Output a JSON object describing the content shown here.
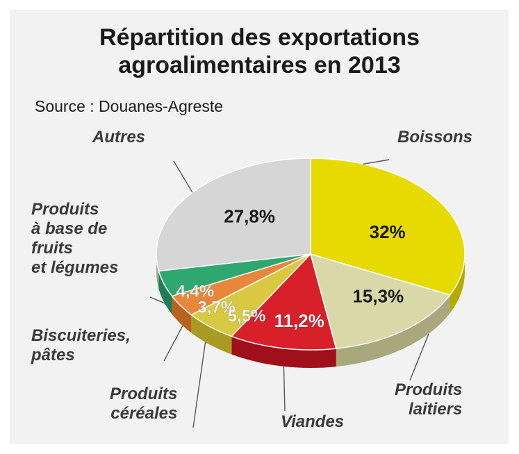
{
  "title_line1": "Répartition des exportations",
  "title_line2": "agroalimentaires en 2013",
  "source": "Source : Douanes-Agreste",
  "chart_data": {
    "type": "pie",
    "title": "Répartition des exportations agroalimentaires en 2013",
    "source": "Source : Douanes-Agreste",
    "unit": "%",
    "slices": [
      {
        "key": "boissons",
        "label": [
          "Boissons"
        ],
        "value": 32,
        "value_label": "32%",
        "color": "#e6da00",
        "side": "#b5ab00",
        "text_color": "#1a1a1a"
      },
      {
        "key": "laitiers",
        "label": [
          "Produits",
          "laitiers"
        ],
        "value": 15.3,
        "value_label": "15,3%",
        "color": "#d9d8a8",
        "side": "#a9a87c",
        "text_color": "#1a1a1a"
      },
      {
        "key": "viandes",
        "label": [
          "Viandes"
        ],
        "value": 11.2,
        "value_label": "11,2%",
        "color": "#d8202a",
        "side": "#a0101a",
        "text_color": "#ffffff"
      },
      {
        "key": "cereales",
        "label": [
          "Produits",
          "céréales"
        ],
        "value": 5.5,
        "value_label": "5,5%",
        "color": "#d9c841",
        "side": "#a99b22",
        "text_color": "#ffffff"
      },
      {
        "key": "biscuiteries",
        "label": [
          "Biscuiteries,",
          "pâtes"
        ],
        "value": 3.7,
        "value_label": "3,7%",
        "color": "#e8873a",
        "side": "#b8621f",
        "text_color": "#ffffff"
      },
      {
        "key": "fruits",
        "label": [
          "Produits",
          "à base de",
          "fruits",
          "et légumes"
        ],
        "value": 4.4,
        "value_label": "4,4%",
        "color": "#2fa870",
        "side": "#1e7d51",
        "text_color": "#ffffff"
      },
      {
        "key": "autres",
        "label": [
          "Autres"
        ],
        "value": 27.8,
        "value_label": "27,8%",
        "color": "#d6d6d6",
        "side": "#a8a8a8",
        "text_color": "#1a1a1a"
      }
    ]
  }
}
